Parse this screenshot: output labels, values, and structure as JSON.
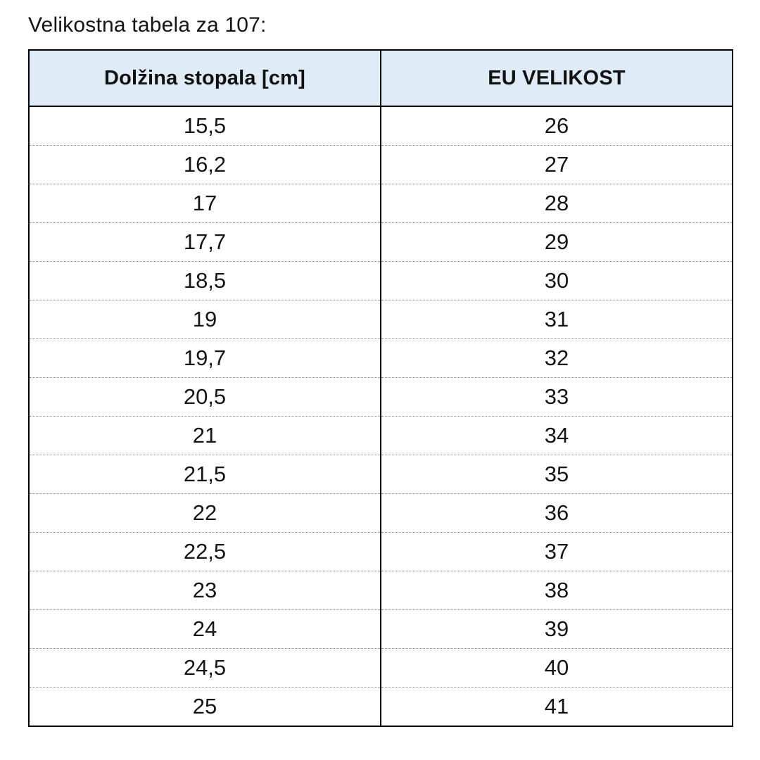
{
  "page": {
    "title": "Velikostna tabela za 107:"
  },
  "table": {
    "columns": [
      "Dolžina stopala [cm]",
      "EU VELIKOST"
    ],
    "rows": [
      [
        "15,5",
        "26"
      ],
      [
        "16,2",
        "27"
      ],
      [
        "17",
        "28"
      ],
      [
        "17,7",
        "29"
      ],
      [
        "18,5",
        "30"
      ],
      [
        "19",
        "31"
      ],
      [
        "19,7",
        "32"
      ],
      [
        "20,5",
        "33"
      ],
      [
        "21",
        "34"
      ],
      [
        "21,5",
        "35"
      ],
      [
        "22",
        "36"
      ],
      [
        "22,5",
        "37"
      ],
      [
        "23",
        "38"
      ],
      [
        "24",
        "39"
      ],
      [
        "24,5",
        "40"
      ],
      [
        "25",
        "41"
      ]
    ],
    "colors": {
      "header_bg": "#e0ebf8",
      "border": "#000000",
      "dotted_separator": "#8c8c8c",
      "text": "#161616"
    }
  }
}
